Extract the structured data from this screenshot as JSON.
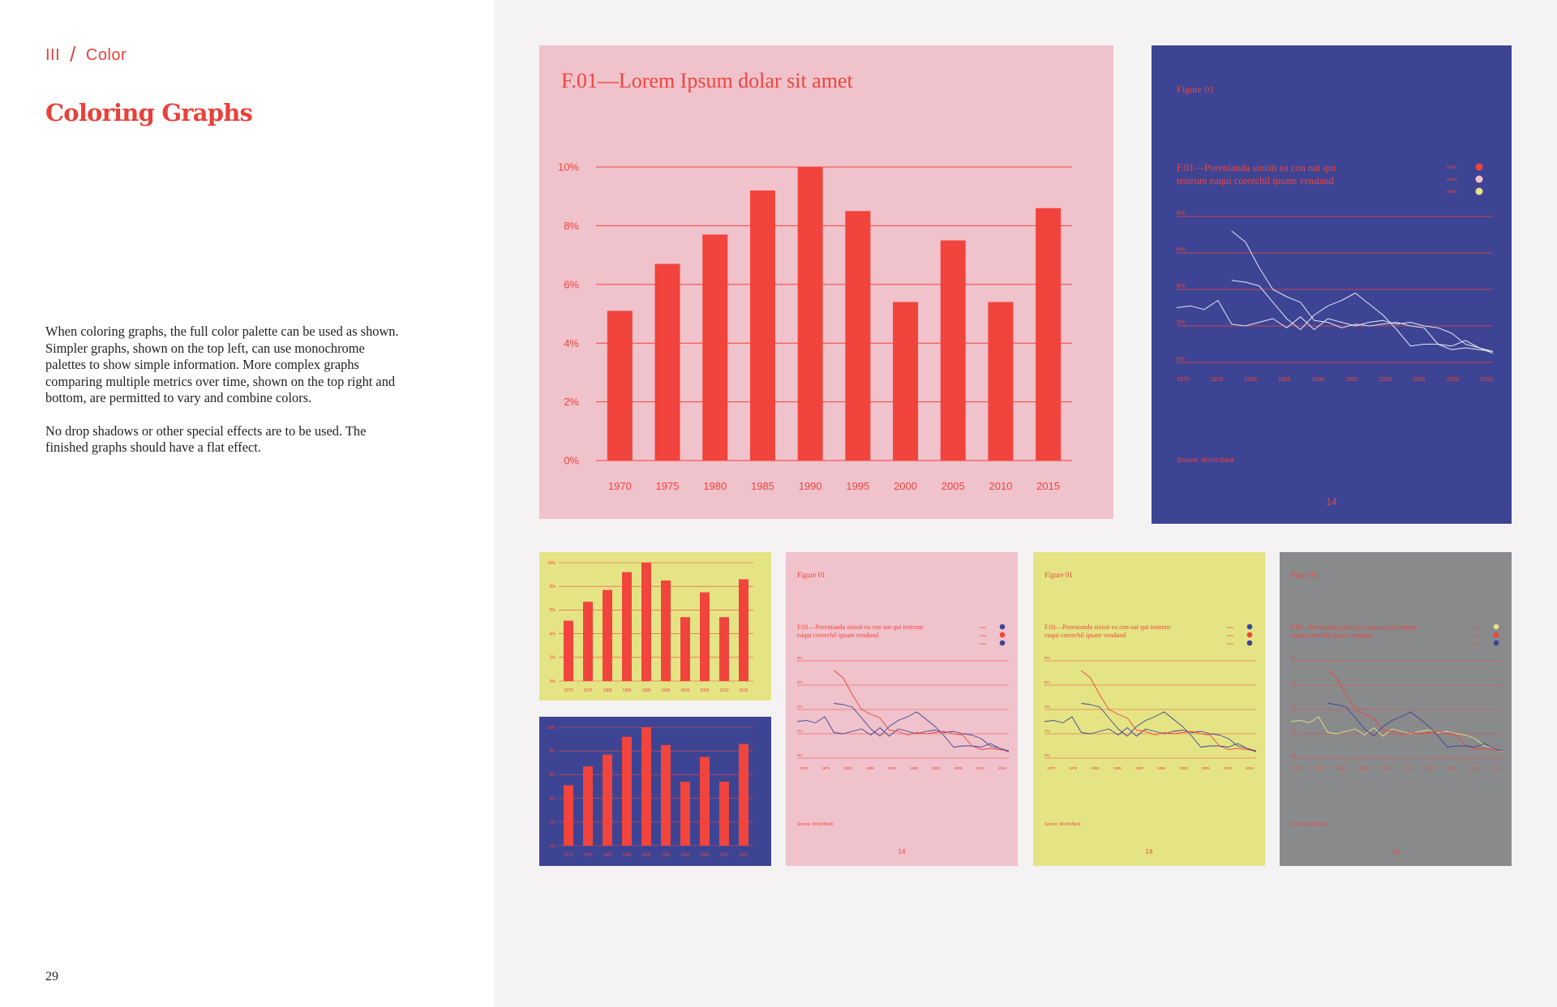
{
  "breadcrumb": {
    "section": "III",
    "separator": "/",
    "page": "Color"
  },
  "heading": "Coloring Graphs",
  "body": [
    "When coloring graphs, the full color palette can be used as shown. Simpler graphs, shown on the top left, can use monochrome palettes to show simple information. More complex graphs comparing multiple metrics over time, shown on the top right and bottom, are permitted to vary and combine colors.",
    "No drop shadows or other special effects are to be used. The finished graphs should have a flat effect."
  ],
  "folio": "29",
  "colors": {
    "red": "#f0443d",
    "pink": "#f0c2cb",
    "navy": "#3d4494",
    "yellow": "#e4e485",
    "gray": "#898a8c",
    "page_bg": "#f5f2f3"
  },
  "chart_data": [
    {
      "id": "main-bar",
      "type": "bar",
      "title": "F.01—Lorem Ipsum dolar sit amet",
      "categories": [
        "1970",
        "1975",
        "1980",
        "1985",
        "1990",
        "1995",
        "2000",
        "2005",
        "2010",
        "2015"
      ],
      "values": [
        5.1,
        6.7,
        7.7,
        9.2,
        10,
        8.5,
        5.4,
        7.5,
        5.4,
        8.6
      ],
      "yticks": [
        "0%",
        "2%",
        "4%",
        "6%",
        "8%",
        "10%"
      ],
      "ylim": [
        0,
        10
      ],
      "grid": true
    },
    {
      "id": "main-line",
      "type": "line",
      "figure_label": "Figure 01",
      "subtitle": "F.01—Porenianda sinisit ea con nat qui testrum eaqui corerchil ipsam vendand",
      "legend": [
        "xxxx",
        "xxxx",
        "xxxx"
      ],
      "source": "Source: World Bank",
      "page_number": "14",
      "x_ticks": [
        "1970",
        "1975",
        "1980",
        "1985",
        "1990",
        "1995",
        "2000",
        "2005",
        "2010",
        "2015"
      ],
      "y_ticks": [
        "0%",
        "2%",
        "4%",
        "6%",
        "8%"
      ],
      "ylim": [
        0,
        8
      ],
      "grid": true,
      "x": [
        1970,
        1972,
        1974,
        1976,
        1978,
        1980,
        1982,
        1984,
        1986,
        1988,
        1990,
        1992,
        1994,
        1996,
        1998,
        2000,
        2002,
        2004,
        2006,
        2008,
        2010,
        2012,
        2014,
        2016
      ],
      "series": [
        {
          "values": [
            3.0,
            3.1,
            2.9,
            3.4,
            2.1,
            2.0,
            2.2,
            2.4,
            1.9,
            2.5,
            1.8,
            2.4,
            2.2,
            2.0,
            2.2,
            2.3,
            2.1,
            2.2,
            2.0,
            1.9,
            1.6,
            1.0,
            0.8,
            0.5
          ]
        },
        {
          "values": [
            null,
            null,
            null,
            null,
            7.2,
            6.6,
            5.2,
            4.0,
            3.6,
            3.3,
            2.3,
            2.2,
            1.9,
            2.1,
            2.0,
            2.1,
            2.2,
            2.0,
            1.9,
            1.0,
            0.7,
            0.8,
            0.7,
            0.6
          ]
        },
        {
          "values": [
            null,
            null,
            null,
            null,
            4.5,
            4.4,
            4.2,
            3.3,
            2.4,
            1.8,
            2.6,
            3.1,
            3.4,
            3.8,
            3.2,
            2.6,
            1.8,
            0.9,
            1.0,
            1.0,
            0.9,
            1.2,
            0.8,
            0.6
          ]
        }
      ]
    }
  ],
  "thumbnails": {
    "yellow_bar": {
      "yticks": [
        "0%",
        "2%",
        "4%",
        "6%",
        "8%",
        "10%"
      ]
    },
    "navy_bar": {
      "yticks": [
        "0%",
        "2%",
        "4%",
        "6%",
        "8%",
        "10%"
      ]
    },
    "pink_line": {
      "figure_label": "Figure 01",
      "subtitle": "F.01—Porenianda sinisit ea con nat qui testrum eaqui corerchil ipsam vendand",
      "legend": [
        "xxxx",
        "xxxx",
        "xxxx"
      ],
      "source": "Source: World Bank",
      "page_number": "14",
      "series_colors": [
        "#3d4494",
        "#f0443d",
        "#3d4494"
      ]
    },
    "yellow_line": {
      "figure_label": "Figure 01",
      "subtitle": "F.01—Porenianda sinisit ea con nat qui testrum eaqui corerchil ipsam vendand",
      "legend": [
        "xxxx",
        "xxxx",
        "xxxx"
      ],
      "source": "Source: World Bank",
      "page_number": "14",
      "series_colors": [
        "#3d4494",
        "#f0443d",
        "#3d4494"
      ]
    },
    "gray_line": {
      "figure_label": "Figure 01",
      "subtitle": "F.01—Porenianda sinisit ea con nat qui testrum eaqui corerchil ipsam vendand",
      "legend": [
        "xxxx",
        "xxxx",
        "xxxx"
      ],
      "source": "Source: World Bank",
      "page_number": "14",
      "series_colors": [
        "#e4e485",
        "#f0443d",
        "#3d4494"
      ]
    }
  }
}
